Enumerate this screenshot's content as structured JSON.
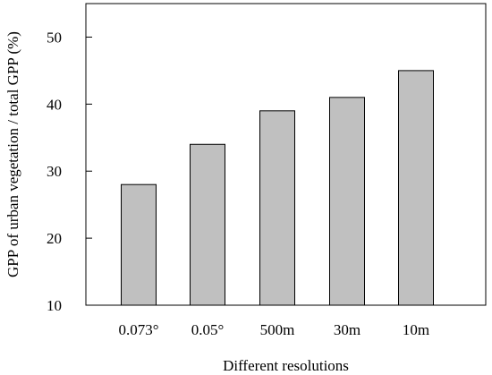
{
  "chart_data": {
    "type": "bar",
    "xlabel": "Different resolutions",
    "ylabel": "GPP of urban vegetation / total GPP (%)",
    "categories": [
      "0.073°",
      "0.05°",
      "500m",
      "30m",
      "10m"
    ],
    "values": [
      28,
      34,
      39,
      41,
      45
    ],
    "ylim": [
      10,
      55
    ],
    "yticks": [
      10,
      20,
      30,
      40,
      50
    ],
    "bar_color": "#c0c0c0",
    "grid": false
  }
}
